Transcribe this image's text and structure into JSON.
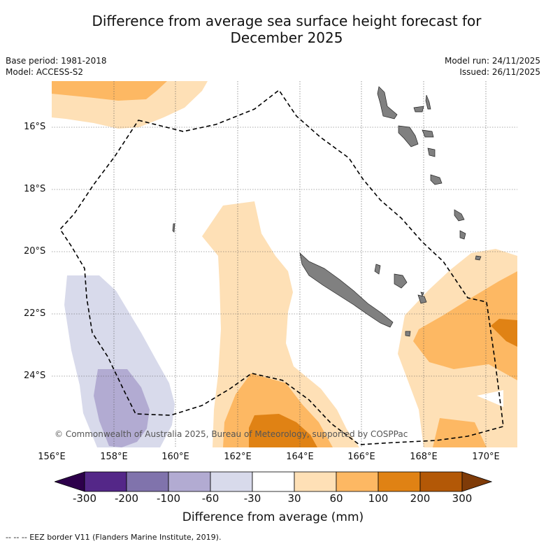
{
  "title_line1": "Difference from average sea surface height forecast for",
  "title_line2": "December 2025",
  "meta": {
    "base_period": "Base period: 1981-2018",
    "model": "Model: ACCESS-S2",
    "model_run": "Model run: 24/11/2025",
    "issued": "Issued: 26/11/2025"
  },
  "axes": {
    "lat_labels": [
      "16°S",
      "18°S",
      "20°S",
      "22°S",
      "24°S"
    ],
    "lon_labels": [
      "156°E",
      "158°E",
      "160°E",
      "162°E",
      "164°E",
      "166°E",
      "168°E",
      "170°E"
    ]
  },
  "colorbar": {
    "ticks": [
      "-300",
      "-200",
      "-100",
      "-60",
      "-30",
      "30",
      "60",
      "100",
      "200",
      "300"
    ],
    "label": "Difference from average (mm)",
    "colors": {
      "below_-300": "#2d004b",
      "-300_-200": "#542788",
      "-200_-100": "#8073ac",
      "-100_-60": "#b2abd2",
      "-60_-30": "#d8daeb",
      "-30_30": "#ffffff",
      "30_60": "#fee0b6",
      "60_100": "#fdb863",
      "100_200": "#e08214",
      "200_300": "#b35806",
      "above_300": "#7f3b08"
    }
  },
  "land_color": "#808080",
  "copyright": "© Commonwealth of Australia 2025, Bureau of Meteorology, supported by COSPPac",
  "footnote": "--  --  -- EEZ border V11 (Flanders Marine Institute, 2019)."
}
